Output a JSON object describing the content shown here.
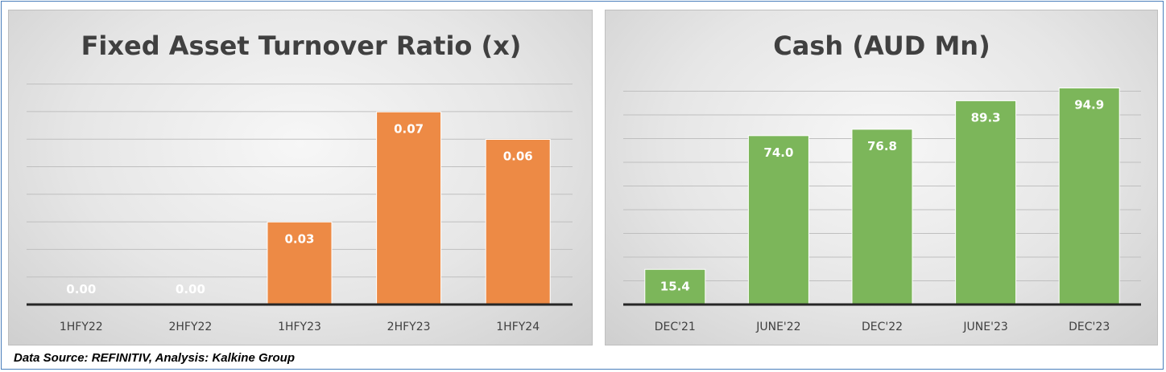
{
  "chart_data": [
    {
      "type": "bar",
      "title": "Fixed Asset Turnover Ratio (x)",
      "categories": [
        "1HFY22",
        "2HFY22",
        "1HFY23",
        "2HFY23",
        "1HFY24"
      ],
      "values": [
        0.0,
        0.0,
        0.03,
        0.07,
        0.06
      ],
      "data_labels": [
        "0.00",
        "0.00",
        "0.03",
        "0.07",
        "0.06"
      ],
      "ylim": [
        0,
        0.08
      ],
      "grid": true,
      "bar_color": "#ed8a45"
    },
    {
      "type": "bar",
      "title": "Cash (AUD Mn)",
      "categories": [
        "DEC'21",
        "JUNE'22",
        "DEC'22",
        "JUNE'23",
        "DEC'23"
      ],
      "values": [
        15.4,
        74.0,
        76.8,
        89.3,
        94.9
      ],
      "data_labels": [
        "15.4",
        "74.0",
        "76.8",
        "89.3",
        "94.9"
      ],
      "ylim": [
        0,
        100
      ],
      "grid": true,
      "bar_color": "#7cb65a"
    }
  ],
  "footer": "Data Source: REFINITIV, Analysis: Kalkine Group"
}
